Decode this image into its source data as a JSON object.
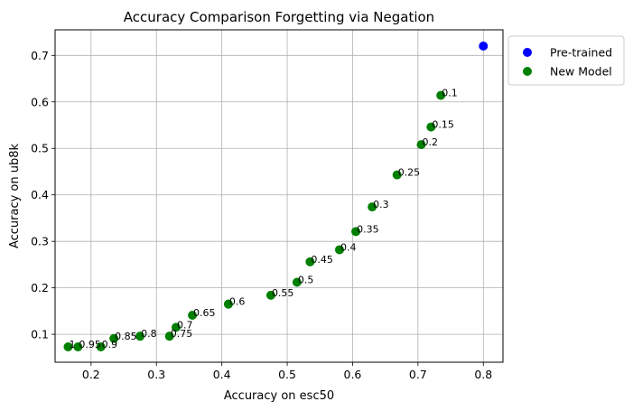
{
  "chart_data": {
    "type": "scatter",
    "title": "Accuracy Comparison Forgetting via Negation",
    "xlabel": "Accuracy on esc50",
    "ylabel": "Accuracy on ub8k",
    "xlim": [
      0.145,
      0.83
    ],
    "ylim": [
      0.04,
      0.755
    ],
    "xticks": [
      0.2,
      0.3,
      0.4,
      0.5,
      0.6,
      0.7,
      0.8
    ],
    "yticks": [
      0.1,
      0.2,
      0.3,
      0.4,
      0.5,
      0.6,
      0.7
    ],
    "grid": true,
    "legend_position": "outside-top-right",
    "series": [
      {
        "name": "Pre-trained",
        "color": "#0000ff",
        "points": [
          {
            "x": 0.8,
            "y": 0.72
          }
        ]
      },
      {
        "name": "New Model",
        "color": "#008000",
        "points": [
          {
            "x": 0.735,
            "y": 0.614,
            "label": "0.1"
          },
          {
            "x": 0.72,
            "y": 0.546,
            "label": "0.15"
          },
          {
            "x": 0.705,
            "y": 0.508,
            "label": "0.2"
          },
          {
            "x": 0.668,
            "y": 0.443,
            "label": "0.25"
          },
          {
            "x": 0.63,
            "y": 0.374,
            "label": "0.3"
          },
          {
            "x": 0.605,
            "y": 0.321,
            "label": "0.35"
          },
          {
            "x": 0.58,
            "y": 0.282,
            "label": "0.4"
          },
          {
            "x": 0.535,
            "y": 0.256,
            "label": "0.45"
          },
          {
            "x": 0.515,
            "y": 0.212,
            "label": "0.5"
          },
          {
            "x": 0.475,
            "y": 0.184,
            "label": "0.55"
          },
          {
            "x": 0.41,
            "y": 0.165,
            "label": "0.6"
          },
          {
            "x": 0.355,
            "y": 0.141,
            "label": "0.65"
          },
          {
            "x": 0.33,
            "y": 0.115,
            "label": "0.7"
          },
          {
            "x": 0.32,
            "y": 0.096,
            "label": "0.75"
          },
          {
            "x": 0.275,
            "y": 0.096,
            "label": "0.8"
          },
          {
            "x": 0.235,
            "y": 0.091,
            "label": "0.85"
          },
          {
            "x": 0.215,
            "y": 0.073,
            "label": "0.9"
          },
          {
            "x": 0.18,
            "y": 0.073,
            "label": "0.95"
          },
          {
            "x": 0.165,
            "y": 0.073,
            "label": "1"
          }
        ]
      }
    ]
  }
}
